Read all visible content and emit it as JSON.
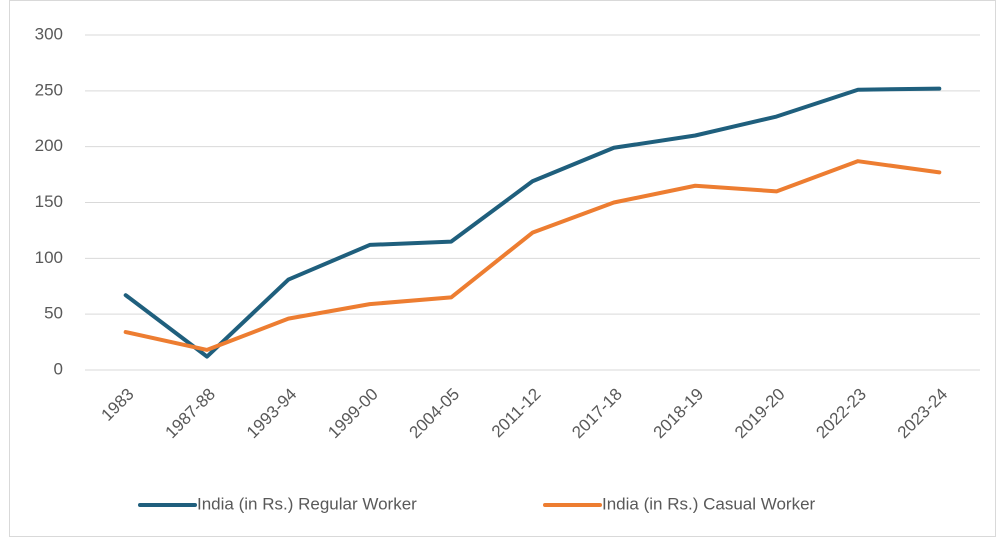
{
  "chart_data": {
    "type": "line",
    "categories": [
      "1983",
      "1987-88",
      "1993-94",
      "1999-00",
      "2004-05",
      "2011-12",
      "2017-18",
      "2018-19",
      "2019-20",
      "2022-23",
      "2023-24"
    ],
    "series": [
      {
        "name": "India (in Rs.) Regular Worker",
        "color": "#1f5f7d",
        "values": [
          67,
          12,
          81,
          112,
          115,
          169,
          199,
          210,
          227,
          251,
          252
        ]
      },
      {
        "name": "India (in Rs.) Casual Worker",
        "color": "#ed7d31",
        "values": [
          34,
          18,
          46,
          59,
          65,
          123,
          150,
          165,
          160,
          187,
          177
        ]
      }
    ],
    "ylim": [
      0,
      300
    ],
    "yticks": [
      0,
      50,
      100,
      150,
      200,
      250,
      300
    ],
    "grid": true,
    "legend": "bottom"
  }
}
